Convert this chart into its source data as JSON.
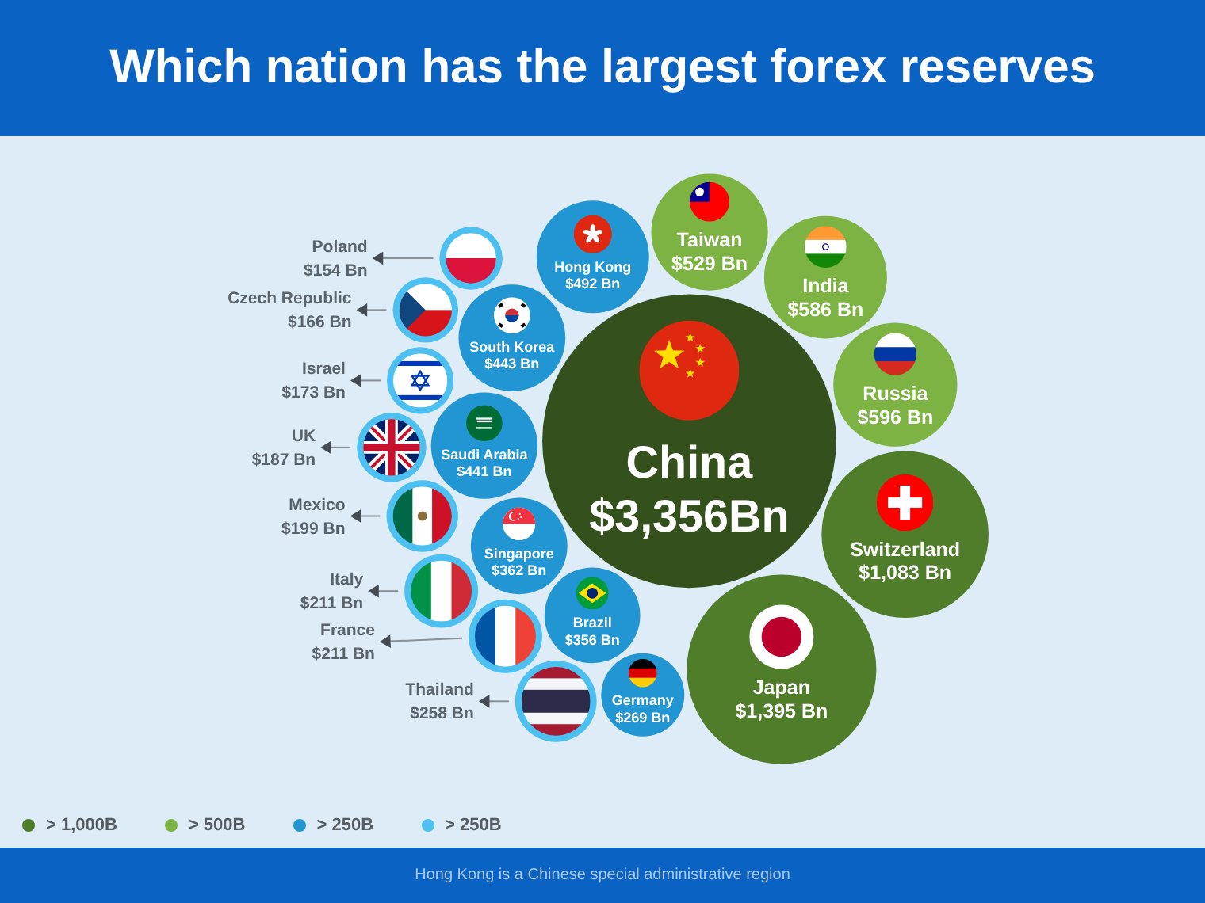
{
  "chart_data": {
    "type": "other",
    "title": "Which nation has the largest forex reserves",
    "categories": [
      "China",
      "Japan",
      "Switzerland",
      "Russia",
      "India",
      "Taiwan",
      "Hong Kong",
      "South Korea",
      "Saudi Arabia",
      "Singapore",
      "Brazil",
      "Germany",
      "Thailand",
      "France",
      "Italy",
      "Mexico",
      "UK",
      "Israel",
      "Czech Republic",
      "Poland"
    ],
    "series": [
      {
        "name": "> 1,000B",
        "color": "#507d2a",
        "colors": [
          "#34501d",
          "#507d2a",
          "#507d2a",
          null,
          null,
          null,
          null,
          null,
          null,
          null,
          null,
          null,
          null,
          null,
          null,
          null,
          null,
          null,
          null,
          null
        ],
        "values": [
          3356,
          1395,
          1083,
          null,
          null,
          null,
          null,
          null,
          null,
          null,
          null,
          null,
          null,
          null,
          null,
          null,
          null,
          null,
          null,
          null
        ],
        "value_labels": [
          "$3,356Bn",
          "$1,395 Bn",
          "$1,083 Bn",
          null,
          null,
          null,
          null,
          null,
          null,
          null,
          null,
          null,
          null,
          null,
          null,
          null,
          null,
          null,
          null,
          null
        ]
      },
      {
        "name": "> 500B",
        "color": "#7cb342",
        "values": [
          null,
          null,
          null,
          596,
          586,
          529,
          null,
          null,
          null,
          null,
          null,
          null,
          null,
          null,
          null,
          null,
          null,
          null,
          null,
          null
        ],
        "value_labels": [
          null,
          null,
          null,
          "$596 Bn",
          "$586 Bn",
          "$529 Bn",
          null,
          null,
          null,
          null,
          null,
          null,
          null,
          null,
          null,
          null,
          null,
          null,
          null,
          null
        ]
      },
      {
        "name": "> 250B",
        "color": "#2196d3",
        "values": [
          null,
          null,
          null,
          null,
          null,
          null,
          492,
          443,
          441,
          362,
          356,
          269,
          null,
          null,
          null,
          null,
          null,
          null,
          null,
          null
        ],
        "value_labels": [
          null,
          null,
          null,
          null,
          null,
          null,
          "$492 Bn",
          "$443 Bn",
          "$441 Bn",
          "$362 Bn",
          "$356 Bn",
          "$269 Bn",
          null,
          null,
          null,
          null,
          null,
          null,
          null,
          null
        ]
      },
      {
        "name": "> 250B",
        "color": "#4cc0f0",
        "values": [
          null,
          null,
          null,
          null,
          null,
          null,
          null,
          null,
          null,
          null,
          null,
          null,
          258,
          211,
          211,
          199,
          187,
          173,
          166,
          154
        ],
        "value_labels": [
          null,
          null,
          null,
          null,
          null,
          null,
          null,
          null,
          null,
          null,
          null,
          null,
          "$258 Bn",
          "$211 Bn",
          "$211 Bn",
          "$199 Bn",
          "$187 Bn",
          "$173 Bn",
          "$166 Bn",
          "$154 Bn"
        ]
      }
    ],
    "legend": "bottom left",
    "annotations": [
      "Hong Kong is a Chinese special administrative region"
    ]
  }
}
